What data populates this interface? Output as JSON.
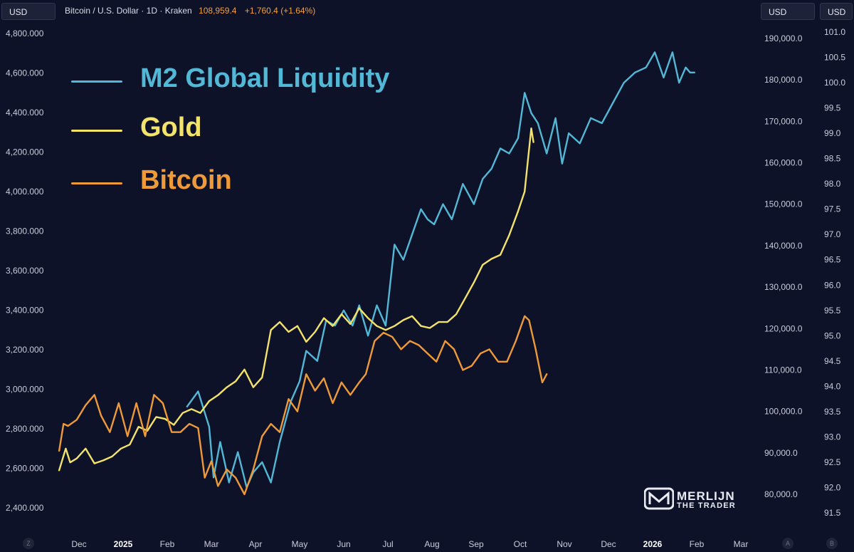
{
  "header": {
    "currency_badge": "USD",
    "symbol_line": "Bitcoin / U.S. Dollar · 1D · Kraken",
    "price": "108,959.4",
    "change": "+1,760.4 (+1.64%)"
  },
  "right_badges": [
    "USD",
    "USD"
  ],
  "corner_buttons": {
    "left": "Z",
    "right_a": "A",
    "right_b": "B"
  },
  "legend": [
    {
      "label": "M2 Global Liquidity",
      "color": "#53b8d6"
    },
    {
      "label": "Gold",
      "color": "#f3e36b"
    },
    {
      "label": "Bitcoin",
      "color": "#ee9a38"
    }
  ],
  "logo": {
    "title": "MERLIJN",
    "subtitle": "THE TRADER"
  },
  "chart_data": {
    "type": "line",
    "title": "Bitcoin / U.S. Dollar · 1D · Kraken",
    "x_axis": {
      "ticks": [
        "Dec",
        "2025",
        "Feb",
        "Mar",
        "Apr",
        "May",
        "Jun",
        "Jul",
        "Aug",
        "Sep",
        "Oct",
        "Nov",
        "Dec",
        "2026",
        "Feb",
        "Mar"
      ],
      "bold_ticks": [
        "2025",
        "2026"
      ],
      "range_months": [
        -0.5,
        15.5
      ]
    },
    "axes": {
      "gold_left": {
        "label": "USD",
        "ticks": [
          "4,800.000",
          "4,600.000",
          "4,400.000",
          "4,200.000",
          "4,000.000",
          "3,800.000",
          "3,600.000",
          "3,400.000",
          "3,200.000",
          "3,000.000",
          "2,800.000",
          "2,600.000",
          "2,400.000"
        ],
        "min": 2400,
        "max": 4800
      },
      "bitcoin_right": {
        "label": "USD",
        "ticks": [
          "190,000.0",
          "180,000.0",
          "170,000.0",
          "160,000.0",
          "150,000.0",
          "140,000.0",
          "130,000.0",
          "120,000.0",
          "110,000.0",
          "100,000.0",
          "90,000.0",
          "80,000.0"
        ],
        "min": 80000,
        "max": 190000
      },
      "m2_right": {
        "label": "USD",
        "ticks": [
          "101.0",
          "100.5",
          "100.0",
          "99.5",
          "99.0",
          "98.5",
          "98.0",
          "97.5",
          "97.0",
          "96.5",
          "96.0",
          "95.5",
          "95.0",
          "94.5",
          "94.0",
          "93.5",
          "93.0",
          "92.5",
          "92.0",
          "91.5"
        ],
        "min": 91.5,
        "max": 101.0
      }
    },
    "series": [
      {
        "name": "M2 Global Liquidity",
        "axis": "m2_right",
        "color": "#53b8d6",
        "x": [
          2.45,
          2.7,
          2.95,
          3.05,
          3.2,
          3.4,
          3.6,
          3.8,
          3.95,
          4.15,
          4.35,
          4.55,
          4.8,
          5.0,
          5.15,
          5.4,
          5.6,
          5.8,
          6.0,
          6.2,
          6.35,
          6.55,
          6.75,
          6.95,
          7.15,
          7.35,
          7.55,
          7.75,
          7.9,
          8.05,
          8.25,
          8.45,
          8.7,
          8.95,
          9.15,
          9.35,
          9.55,
          9.75,
          9.95,
          10.1,
          10.25,
          10.4,
          10.6,
          10.8,
          10.95,
          11.1,
          11.35,
          11.6,
          11.85,
          12.1,
          12.35,
          12.6,
          12.85,
          13.05,
          13.25,
          13.45,
          13.6,
          13.75,
          13.85,
          13.95
        ],
        "values": [
          93.6,
          93.9,
          93.2,
          92.2,
          92.9,
          92.1,
          92.7,
          92.0,
          92.3,
          92.5,
          92.1,
          92.9,
          93.7,
          94.1,
          94.7,
          94.5,
          95.3,
          95.2,
          95.5,
          95.2,
          95.6,
          95.0,
          95.6,
          95.2,
          96.8,
          96.5,
          97.0,
          97.5,
          97.3,
          97.2,
          97.6,
          97.3,
          98.0,
          97.6,
          98.1,
          98.3,
          98.7,
          98.6,
          98.9,
          99.8,
          99.4,
          99.2,
          98.6,
          99.3,
          98.4,
          99.0,
          98.8,
          99.3,
          99.2,
          99.6,
          100.0,
          100.2,
          100.3,
          100.6,
          100.1,
          100.6,
          100.0,
          100.3,
          100.2,
          100.2
        ]
      },
      {
        "name": "Gold",
        "axis": "gold_left",
        "color": "#f3e36b",
        "x": [
          -0.45,
          -0.3,
          -0.2,
          -0.05,
          0.15,
          0.35,
          0.55,
          0.75,
          0.95,
          1.15,
          1.35,
          1.55,
          1.75,
          1.95,
          2.15,
          2.35,
          2.55,
          2.75,
          2.95,
          3.15,
          3.35,
          3.55,
          3.75,
          3.95,
          4.15,
          4.35,
          4.55,
          4.75,
          4.95,
          5.15,
          5.35,
          5.55,
          5.75,
          5.95,
          6.15,
          6.35,
          6.55,
          6.75,
          6.95,
          7.15,
          7.35,
          7.55,
          7.75,
          7.95,
          8.15,
          8.35,
          8.55,
          8.75,
          8.95,
          9.15,
          9.35,
          9.55,
          9.75,
          9.95,
          10.1,
          10.25,
          10.3
        ],
        "values": [
          2590,
          2700,
          2630,
          2650,
          2700,
          2625,
          2640,
          2660,
          2700,
          2720,
          2810,
          2790,
          2860,
          2850,
          2820,
          2880,
          2900,
          2880,
          2940,
          2970,
          3010,
          3040,
          3100,
          3010,
          3060,
          3300,
          3340,
          3290,
          3320,
          3240,
          3290,
          3360,
          3320,
          3380,
          3330,
          3410,
          3360,
          3320,
          3300,
          3320,
          3350,
          3370,
          3320,
          3310,
          3340,
          3340,
          3380,
          3460,
          3540,
          3630,
          3660,
          3680,
          3780,
          3900,
          4000,
          4320,
          4250
        ]
      },
      {
        "name": "Bitcoin",
        "axis": "bitcoin_right",
        "color": "#ee9a38",
        "x": [
          -0.45,
          -0.35,
          -0.25,
          -0.05,
          0.15,
          0.35,
          0.5,
          0.7,
          0.9,
          1.1,
          1.3,
          1.5,
          1.7,
          1.9,
          2.1,
          2.3,
          2.5,
          2.7,
          2.85,
          3.0,
          3.15,
          3.35,
          3.55,
          3.75,
          3.95,
          4.15,
          4.35,
          4.55,
          4.75,
          4.95,
          5.15,
          5.35,
          5.55,
          5.75,
          5.95,
          6.15,
          6.35,
          6.5,
          6.7,
          6.9,
          7.1,
          7.3,
          7.5,
          7.7,
          7.9,
          8.1,
          8.3,
          8.5,
          8.7,
          8.9,
          9.1,
          9.3,
          9.5,
          9.7,
          9.9,
          10.1,
          10.2,
          10.35,
          10.5,
          10.6
        ],
        "values": [
          90500,
          97000,
          96500,
          98000,
          101500,
          104000,
          99000,
          95000,
          102000,
          94000,
          102000,
          94000,
          104000,
          102000,
          95000,
          95000,
          97000,
          96000,
          84000,
          88000,
          82000,
          86000,
          84000,
          80000,
          86000,
          94000,
          97000,
          95000,
          103000,
          100000,
          109000,
          105000,
          108000,
          102000,
          107000,
          104000,
          107000,
          109000,
          117000,
          119000,
          118000,
          115000,
          117000,
          116000,
          114000,
          112000,
          117000,
          115000,
          110000,
          111000,
          114000,
          115000,
          112000,
          112000,
          117000,
          123000,
          122000,
          115000,
          107000,
          109000
        ]
      }
    ]
  }
}
